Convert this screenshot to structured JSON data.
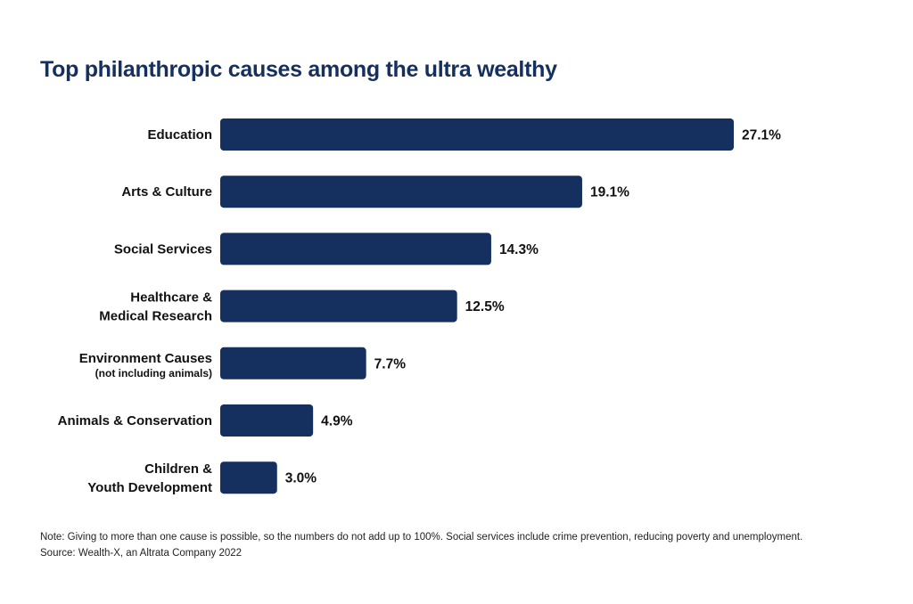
{
  "chart_data": {
    "type": "bar",
    "orientation": "horizontal",
    "title": "Top philanthropic causes among the ultra wealthy",
    "categories": [
      {
        "label": "Education",
        "sublabel": ""
      },
      {
        "label": "Arts & Culture",
        "sublabel": ""
      },
      {
        "label": "Social Services",
        "sublabel": ""
      },
      {
        "label": "Healthcare &\nMedical Research",
        "sublabel": ""
      },
      {
        "label": "Environment Causes",
        "sublabel": "(not including animals)"
      },
      {
        "label": "Animals & Conservation",
        "sublabel": ""
      },
      {
        "label": "Children &\nYouth Development",
        "sublabel": ""
      }
    ],
    "values": [
      27.1,
      19.1,
      14.3,
      12.5,
      7.7,
      4.9,
      3.0
    ],
    "value_labels": [
      "27.1%",
      "19.1%",
      "14.3%",
      "12.5%",
      "7.7%",
      "4.9%",
      "3.0%"
    ],
    "xlim": [
      0,
      27.1
    ],
    "grid": false,
    "legend": "none",
    "bar_color": "#15305e"
  },
  "footer": {
    "note": "Note: Giving to more than one cause is possible, so the numbers do not add up to 100%. Social services include crime prevention, reducing poverty and unemployment.",
    "source": "Source: Wealth-X, an Altrata Company  2022"
  }
}
